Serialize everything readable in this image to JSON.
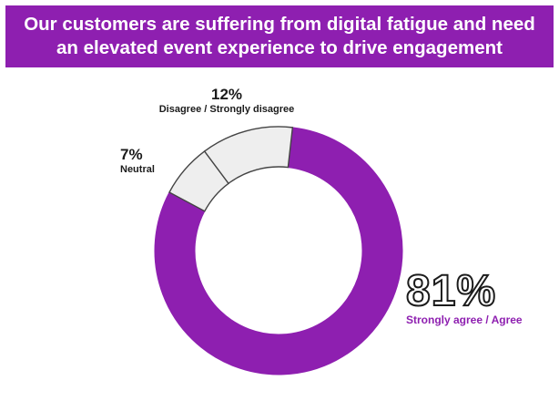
{
  "banner": {
    "line1": "Our customers are suffering from digital fatigue and need",
    "line2": "an elevated event experience to drive engagement"
  },
  "colors": {
    "banner": "#8e1fb0",
    "agree": "#8e1fb0",
    "other": "#eeeeee",
    "outline": "#444444"
  },
  "chart_data": {
    "type": "pie",
    "variant": "donut",
    "slices": [
      {
        "label": "Strongly agree / Agree",
        "value": 81,
        "display": "81%"
      },
      {
        "label": "Neutral",
        "value": 7,
        "display": "7%"
      },
      {
        "label": "Disagree / Strongly disagree",
        "value": 12,
        "display": "12%"
      }
    ]
  }
}
